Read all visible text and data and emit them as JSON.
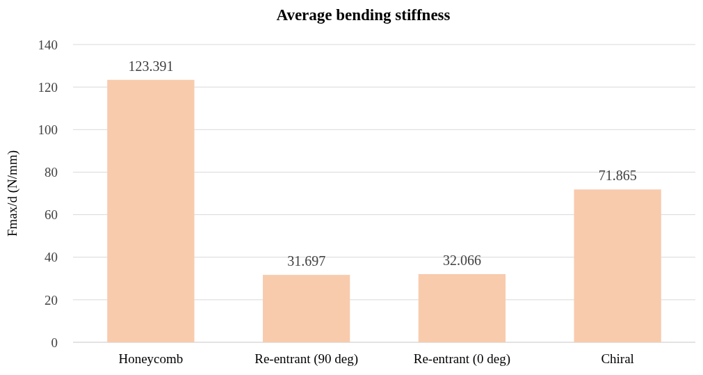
{
  "chart_data": {
    "type": "bar",
    "title": "Average bending stiffness",
    "ylabel": "Fmax/d (N/mm)",
    "categories": [
      "Honeycomb",
      "Re-entrant (90 deg)",
      "Re-entrant (0 deg)",
      "Chiral"
    ],
    "values": [
      123.391,
      31.697,
      32.066,
      71.865
    ],
    "color": "#f8cbad",
    "ylim": [
      0,
      140
    ],
    "yticks": [
      0,
      20,
      40,
      60,
      80,
      100,
      120,
      140
    ],
    "grid": "y",
    "data_labels": true
  }
}
